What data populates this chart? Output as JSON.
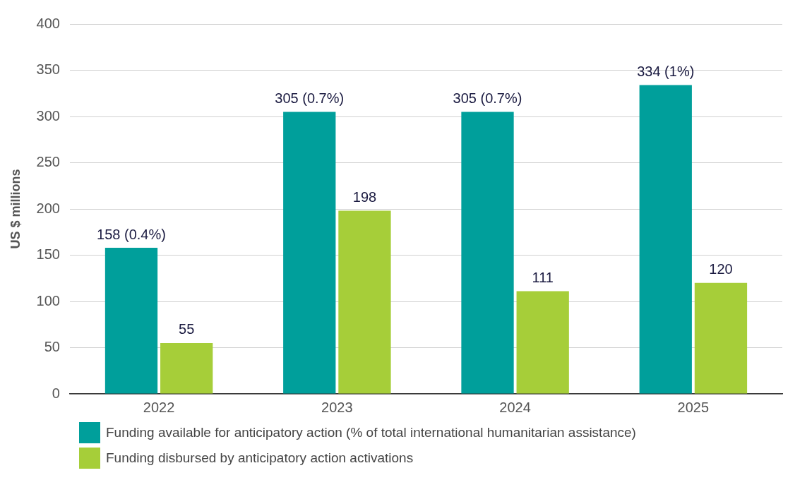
{
  "chart_data": {
    "type": "bar",
    "ylabel": "US $ millions",
    "categories": [
      "2022",
      "2023",
      "2024",
      "2025"
    ],
    "series": [
      {
        "name": "Funding available for anticipatory action (% of total international humanitarian assistance)",
        "color": "#009f9b",
        "values": [
          158,
          305,
          305,
          334
        ],
        "value_labels": [
          "158 (0.4%)",
          "305 (0.7%)",
          "305 (0.7%)",
          "334 (1%)"
        ]
      },
      {
        "name": "Funding disbursed by anticipatory action activations",
        "color": "#a6ce39",
        "values": [
          55,
          198,
          111,
          120
        ],
        "value_labels": [
          "55",
          "198",
          "111",
          "120"
        ]
      }
    ],
    "ylim": [
      0,
      400
    ],
    "yticks": [
      0,
      50,
      100,
      150,
      200,
      250,
      300,
      350,
      400
    ],
    "grid": "y",
    "legend": "bottom"
  }
}
